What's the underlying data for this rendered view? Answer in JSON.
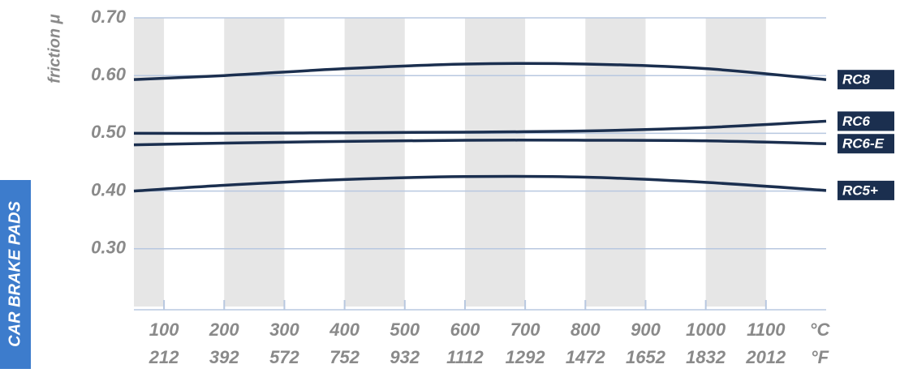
{
  "chart_data": {
    "type": "line",
    "side_label": "CAR BRAKE PADS",
    "y_label": "friction μ",
    "x": [
      50,
      200,
      400,
      600,
      800,
      1000,
      1200
    ],
    "xlim": [
      50,
      1200
    ],
    "xticks": [
      100,
      200,
      300,
      400,
      500,
      600,
      700,
      800,
      900,
      1000,
      1100
    ],
    "x_unit": "°C",
    "xticks_fahrenheit": [
      212,
      392,
      572,
      752,
      932,
      1112,
      1292,
      1472,
      1652,
      1832,
      2012
    ],
    "x2_unit": "°F",
    "ylim": [
      0.2,
      0.7
    ],
    "yticks": [
      {
        "value": 0.7,
        "label": "0.70"
      },
      {
        "value": 0.6,
        "label": "0.60"
      },
      {
        "value": 0.5,
        "label": "0.50"
      },
      {
        "value": 0.4,
        "label": "0.40"
      },
      {
        "value": 0.3,
        "label": "0.30"
      }
    ],
    "grid": true,
    "series": [
      {
        "name": "RC8",
        "color": "#1b2f4f",
        "values": [
          0.593,
          0.6,
          0.612,
          0.62,
          0.62,
          0.612,
          0.593
        ]
      },
      {
        "name": "RC6",
        "color": "#1b2f4f",
        "values": [
          0.5,
          0.5,
          0.501,
          0.502,
          0.504,
          0.51,
          0.521
        ]
      },
      {
        "name": "RC6-E",
        "color": "#1b2f4f",
        "values": [
          0.48,
          0.483,
          0.486,
          0.488,
          0.488,
          0.487,
          0.482
        ]
      },
      {
        "name": "RC5+",
        "color": "#1b2f4f",
        "values": [
          0.4,
          0.41,
          0.42,
          0.425,
          0.424,
          0.415,
          0.401
        ]
      }
    ]
  }
}
